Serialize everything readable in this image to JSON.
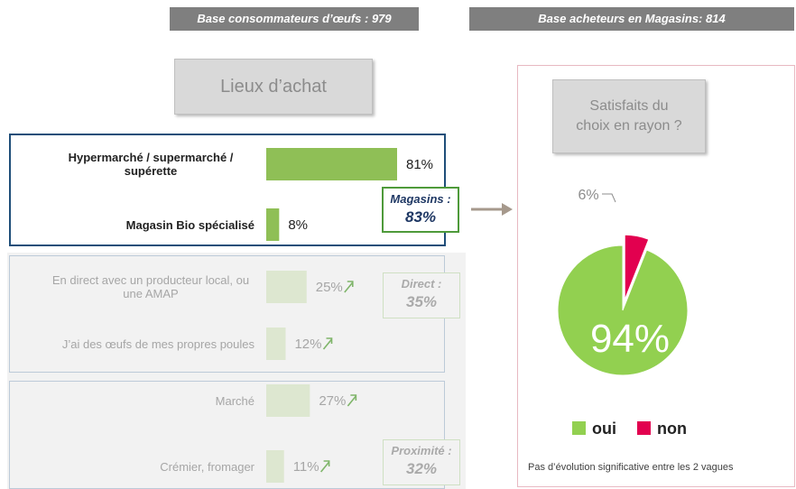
{
  "left_header": "Base consommateurs d’œufs : 979",
  "right_header": "Base acheteurs en Magasins: 814",
  "chart_data": [
    {
      "type": "hbar",
      "title": "Lieux d’achat",
      "categories": [
        "Hypermarché / supermarché / supérette",
        "Magasin Bio spécialisé",
        "En direct avec un producteur local, ou une AMAP",
        "J’ai des œufs de mes propres poules",
        "Marché",
        "Crémier, fromager"
      ],
      "values": [
        81,
        8,
        25,
        12,
        27,
        11
      ],
      "value_labels": [
        "81%",
        "8%",
        "25%",
        "12%",
        "27%",
        "11%"
      ],
      "colors": [
        "#8fbf56",
        "#8fbf56",
        "#dde7d0",
        "#dde7d0",
        "#dde7d0",
        "#dde7d0"
      ],
      "xlim": [
        0,
        100
      ],
      "annotations": [
        {
          "title": "Magasins :",
          "text": "83%"
        },
        {
          "title": "Direct :",
          "text": "35%"
        },
        {
          "title": "Proximité :",
          "text": "32%"
        }
      ]
    },
    {
      "type": "pie",
      "title": "Satisfaits du choix en rayon ?",
      "categories": [
        "oui",
        "non"
      ],
      "values": [
        94,
        6
      ],
      "value_labels": [
        "94%",
        "6%"
      ],
      "colors": [
        "#92d050",
        "#e2004f"
      ],
      "note": "Pas d’évolution significative entre les 2 vagues"
    }
  ]
}
